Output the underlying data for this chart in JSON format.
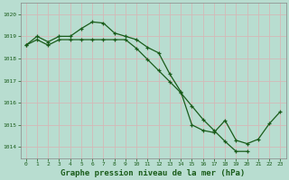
{
  "title": "Graphe pression niveau de la mer (hPa)",
  "bg_color": "#b8ddd0",
  "grid_color": "#d4b8b8",
  "line_color": "#1a5c1a",
  "line1_x": [
    0,
    1,
    2,
    3,
    4,
    5,
    6,
    7,
    8,
    9,
    10,
    11,
    12,
    13,
    14,
    15,
    16,
    17,
    18,
    19,
    20,
    21,
    22,
    23
  ],
  "line1_y": [
    1018.6,
    1019.0,
    1018.75,
    1019.0,
    1019.0,
    1019.35,
    1019.65,
    1019.6,
    1019.15,
    1019.0,
    1018.85,
    1018.5,
    1018.25,
    1017.3,
    1016.5,
    1015.0,
    1014.75,
    1014.65,
    1015.2,
    1014.3,
    1014.15,
    1014.35,
    1015.05,
    1015.6
  ],
  "line2_x": [
    0,
    1,
    2,
    3,
    4,
    5,
    6,
    7,
    8,
    9,
    10,
    11,
    12,
    13,
    14,
    15,
    16,
    17,
    18,
    19,
    20
  ],
  "line2_y": [
    1018.6,
    1018.85,
    1018.6,
    1018.85,
    1018.85,
    1018.85,
    1018.85,
    1018.85,
    1018.85,
    1018.85,
    1018.45,
    1017.95,
    1017.45,
    1016.95,
    1016.45,
    1015.85,
    1015.25,
    1014.75,
    1014.25,
    1013.8,
    1013.8
  ],
  "ylim": [
    1013.5,
    1020.5
  ],
  "yticks": [
    1014,
    1015,
    1016,
    1017,
    1018,
    1019,
    1020
  ],
  "xlim": [
    -0.5,
    23.5
  ],
  "xticks": [
    0,
    1,
    2,
    3,
    4,
    5,
    6,
    7,
    8,
    9,
    10,
    11,
    12,
    13,
    14,
    15,
    16,
    17,
    18,
    19,
    20,
    21,
    22,
    23
  ],
  "title_fontsize": 6.5,
  "tick_fontsize": 4.5,
  "linewidth": 0.9,
  "markersize": 3.5,
  "markeredgewidth": 0.9
}
